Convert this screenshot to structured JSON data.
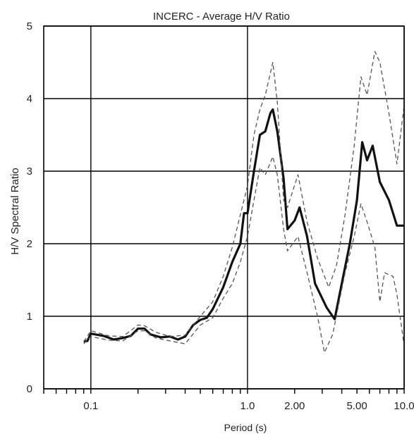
{
  "chart_data": {
    "type": "line",
    "title": "INCERC - Average H/V Ratio",
    "xlabel": "Period (s)",
    "ylabel": "H/V Spectral Ratio",
    "xscale": "log",
    "xlim": [
      0.05,
      10.0
    ],
    "ylim": [
      0,
      5
    ],
    "grid": true,
    "x_tick_labels": [
      {
        "value": 0.1,
        "label": "0.1"
      },
      {
        "value": 1.0,
        "label": "1.0"
      },
      {
        "value": 2.0,
        "label": "2.00"
      },
      {
        "value": 5.0,
        "label": "5.00"
      },
      {
        "value": 10.0,
        "label": "10.0"
      }
    ],
    "y_ticks": [
      0,
      1,
      2,
      3,
      4,
      5
    ],
    "series": [
      {
        "style": "solid",
        "color": "#111111",
        "points": [
          [
            0.09,
            0.65
          ],
          [
            0.095,
            0.66
          ],
          [
            0.1,
            0.76
          ],
          [
            0.12,
            0.73
          ],
          [
            0.14,
            0.68
          ],
          [
            0.16,
            0.7
          ],
          [
            0.18,
            0.73
          ],
          [
            0.2,
            0.83
          ],
          [
            0.22,
            0.83
          ],
          [
            0.24,
            0.75
          ],
          [
            0.28,
            0.71
          ],
          [
            0.32,
            0.72
          ],
          [
            0.36,
            0.68
          ],
          [
            0.4,
            0.72
          ],
          [
            0.45,
            0.88
          ],
          [
            0.5,
            0.95
          ],
          [
            0.55,
            0.98
          ],
          [
            0.6,
            1.1
          ],
          [
            0.7,
            1.4
          ],
          [
            0.8,
            1.75
          ],
          [
            0.9,
            2.0
          ],
          [
            0.95,
            2.42
          ],
          [
            1.0,
            2.42
          ],
          [
            1.1,
            3.0
          ],
          [
            1.2,
            3.5
          ],
          [
            1.3,
            3.55
          ],
          [
            1.4,
            3.8
          ],
          [
            1.45,
            3.85
          ],
          [
            1.55,
            3.55
          ],
          [
            1.7,
            2.9
          ],
          [
            1.8,
            2.2
          ],
          [
            2.0,
            2.32
          ],
          [
            2.15,
            2.5
          ],
          [
            2.4,
            2.1
          ],
          [
            2.7,
            1.45
          ],
          [
            3.2,
            1.12
          ],
          [
            3.6,
            0.96
          ],
          [
            4.0,
            1.45
          ],
          [
            4.5,
            2.0
          ],
          [
            5.0,
            2.6
          ],
          [
            5.4,
            3.4
          ],
          [
            5.8,
            3.15
          ],
          [
            6.3,
            3.35
          ],
          [
            7.0,
            2.85
          ],
          [
            8.0,
            2.6
          ],
          [
            9.0,
            2.25
          ],
          [
            10.0,
            2.25
          ]
        ]
      },
      {
        "style": "dashed",
        "color": "#555555",
        "points": [
          [
            0.09,
            0.65
          ],
          [
            0.1,
            0.8
          ],
          [
            0.13,
            0.73
          ],
          [
            0.16,
            0.72
          ],
          [
            0.2,
            0.88
          ],
          [
            0.22,
            0.87
          ],
          [
            0.26,
            0.78
          ],
          [
            0.32,
            0.72
          ],
          [
            0.4,
            0.74
          ],
          [
            0.5,
            1.0
          ],
          [
            0.6,
            1.2
          ],
          [
            0.7,
            1.55
          ],
          [
            0.8,
            1.95
          ],
          [
            0.9,
            2.4
          ],
          [
            1.0,
            2.8
          ],
          [
            1.1,
            3.5
          ],
          [
            1.2,
            3.85
          ],
          [
            1.3,
            4.05
          ],
          [
            1.45,
            4.5
          ],
          [
            1.55,
            3.95
          ],
          [
            1.7,
            2.6
          ],
          [
            1.8,
            2.5
          ],
          [
            2.1,
            2.95
          ],
          [
            2.4,
            2.3
          ],
          [
            2.8,
            1.8
          ],
          [
            3.3,
            1.4
          ],
          [
            3.7,
            1.7
          ],
          [
            4.2,
            2.4
          ],
          [
            4.8,
            3.35
          ],
          [
            5.3,
            4.3
          ],
          [
            5.8,
            4.05
          ],
          [
            6.5,
            4.65
          ],
          [
            7.0,
            4.5
          ],
          [
            8.0,
            3.8
          ],
          [
            9.0,
            3.1
          ],
          [
            10.0,
            3.9
          ]
        ]
      },
      {
        "style": "dashed",
        "color": "#555555",
        "points": [
          [
            0.09,
            0.62
          ],
          [
            0.1,
            0.72
          ],
          [
            0.13,
            0.67
          ],
          [
            0.16,
            0.66
          ],
          [
            0.2,
            0.8
          ],
          [
            0.22,
            0.8
          ],
          [
            0.26,
            0.7
          ],
          [
            0.32,
            0.66
          ],
          [
            0.4,
            0.62
          ],
          [
            0.5,
            0.88
          ],
          [
            0.6,
            0.98
          ],
          [
            0.7,
            1.25
          ],
          [
            0.8,
            1.45
          ],
          [
            0.9,
            1.75
          ],
          [
            1.0,
            2.1
          ],
          [
            1.1,
            2.6
          ],
          [
            1.2,
            3.05
          ],
          [
            1.3,
            2.95
          ],
          [
            1.45,
            3.2
          ],
          [
            1.55,
            2.95
          ],
          [
            1.7,
            2.2
          ],
          [
            1.8,
            1.9
          ],
          [
            2.1,
            2.1
          ],
          [
            2.4,
            1.6
          ],
          [
            2.8,
            1.0
          ],
          [
            3.1,
            0.5
          ],
          [
            3.5,
            0.75
          ],
          [
            4.2,
            1.6
          ],
          [
            4.8,
            2.1
          ],
          [
            5.3,
            2.55
          ],
          [
            5.8,
            2.3
          ],
          [
            6.5,
            1.95
          ],
          [
            7.0,
            1.2
          ],
          [
            7.5,
            1.6
          ],
          [
            8.5,
            1.55
          ],
          [
            9.0,
            1.3
          ],
          [
            10.0,
            0.6
          ]
        ]
      }
    ]
  }
}
